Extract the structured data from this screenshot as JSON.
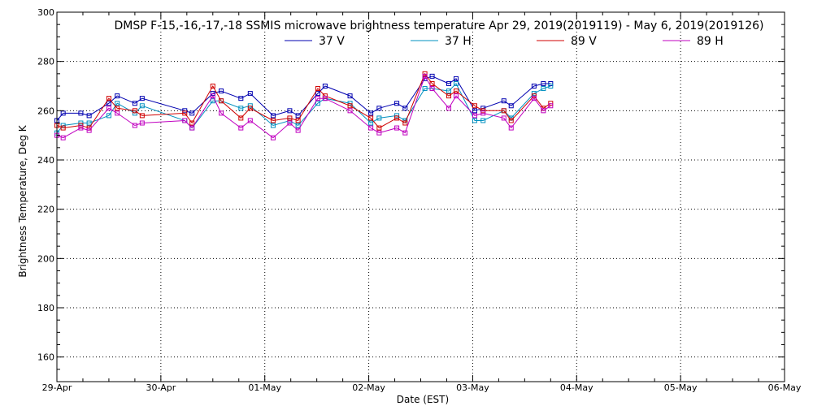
{
  "chart_data": {
    "type": "line",
    "title": "DMSP F-15,-16,-17,-18 SSMIS microwave brightness temperature Apr 29, 2019(2019119) - May  6, 2019(2019126)",
    "xlabel": "Date (EST)",
    "ylabel": "Brightness Temperature, Deg K",
    "xlim": [
      0,
      7
    ],
    "ylim": [
      150,
      300
    ],
    "x_unit": "days since 29-Apr 00:00",
    "x_ticks": [
      {
        "value": 0,
        "label": "29-Apr"
      },
      {
        "value": 1,
        "label": "30-Apr"
      },
      {
        "value": 2,
        "label": "01-May"
      },
      {
        "value": 3,
        "label": "02-May"
      },
      {
        "value": 4,
        "label": "03-May"
      },
      {
        "value": 5,
        "label": "04-May"
      },
      {
        "value": 6,
        "label": "05-May"
      },
      {
        "value": 7,
        "label": "06-May"
      }
    ],
    "y_ticks": [
      160,
      180,
      200,
      220,
      240,
      260,
      280,
      300
    ],
    "grid": true,
    "legend_position": "top",
    "series": [
      {
        "name": "37 V",
        "color": "#0000b0",
        "x": [
          0.0,
          0.06,
          0.23,
          0.31,
          0.5,
          0.58,
          0.75,
          0.82,
          1.23,
          1.3,
          1.5,
          1.58,
          1.77,
          1.86,
          2.08,
          2.24,
          2.32,
          2.51,
          2.58,
          2.82,
          3.02,
          3.1,
          3.27,
          3.35,
          3.54,
          3.61,
          3.77,
          3.84,
          4.02,
          4.1,
          4.3,
          4.37,
          4.59,
          4.68,
          4.75
        ],
        "y": [
          256,
          259,
          259,
          258,
          263,
          266,
          263,
          265,
          260,
          259,
          267,
          268,
          265,
          267,
          258,
          260,
          258,
          267,
          270,
          266,
          259,
          261,
          263,
          261,
          273,
          274,
          271,
          273,
          260,
          261,
          264,
          262,
          270,
          271,
          271
        ]
      },
      {
        "name": "37 H",
        "color": "#0090c0",
        "x": [
          0.0,
          0.06,
          0.23,
          0.31,
          0.5,
          0.58,
          0.75,
          0.82,
          1.23,
          1.3,
          1.5,
          1.58,
          1.77,
          1.86,
          2.08,
          2.24,
          2.32,
          2.51,
          2.58,
          2.82,
          3.02,
          3.1,
          3.27,
          3.35,
          3.54,
          3.61,
          3.77,
          3.84,
          4.02,
          4.1,
          4.3,
          4.37,
          4.59,
          4.68,
          4.75
        ],
        "y": [
          251,
          254,
          255,
          255,
          258,
          263,
          259,
          262,
          256,
          253,
          264,
          264,
          261,
          262,
          254,
          256,
          254,
          263,
          265,
          263,
          255,
          257,
          258,
          256,
          269,
          269,
          268,
          271,
          256,
          256,
          260,
          257,
          267,
          269,
          270
        ]
      },
      {
        "name": "89 V",
        "color": "#d00000",
        "x": [
          0.0,
          0.06,
          0.23,
          0.31,
          0.5,
          0.58,
          0.75,
          0.82,
          1.23,
          1.3,
          1.5,
          1.58,
          1.77,
          1.86,
          2.08,
          2.24,
          2.32,
          2.51,
          2.58,
          2.82,
          3.02,
          3.1,
          3.27,
          3.35,
          3.54,
          3.61,
          3.77,
          3.84,
          4.02,
          4.1,
          4.3,
          4.37,
          4.59,
          4.68,
          4.75
        ],
        "y": [
          254,
          253,
          254,
          253,
          265,
          261,
          260,
          258,
          259,
          255,
          270,
          264,
          257,
          261,
          256,
          257,
          256,
          269,
          266,
          262,
          257,
          253,
          257,
          255,
          275,
          271,
          266,
          268,
          262,
          260,
          260,
          256,
          266,
          261,
          263
        ]
      },
      {
        "name": "89 H",
        "color": "#c000c0",
        "x": [
          0.0,
          0.06,
          0.23,
          0.31,
          0.5,
          0.58,
          0.75,
          0.82,
          1.23,
          1.3,
          1.5,
          1.58,
          1.77,
          1.86,
          2.08,
          2.24,
          2.32,
          2.51,
          2.58,
          2.82,
          3.02,
          3.1,
          3.27,
          3.35,
          3.54,
          3.61,
          3.77,
          3.84,
          4.02,
          4.1,
          4.3,
          4.37,
          4.59,
          4.68,
          4.75
        ],
        "y": [
          250,
          249,
          253,
          252,
          261,
          259,
          254,
          255,
          256,
          253,
          266,
          259,
          253,
          256,
          249,
          255,
          252,
          265,
          265,
          260,
          253,
          251,
          253,
          251,
          274,
          269,
          261,
          266,
          258,
          259,
          257,
          253,
          265,
          260,
          262
        ]
      }
    ]
  }
}
